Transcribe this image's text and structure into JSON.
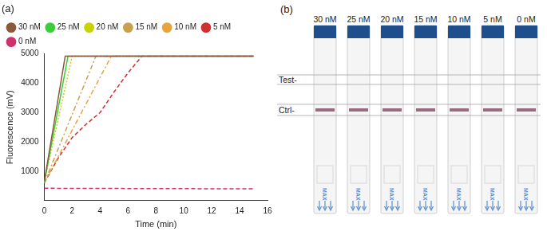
{
  "chart_data": {
    "type": "line",
    "title": "(a)",
    "x_label": "Time (min)",
    "y_label": "Fluorescence (mV)",
    "xlim": [
      0,
      16
    ],
    "xticks": [
      0,
      2,
      4,
      6,
      8,
      10,
      12,
      14,
      16
    ],
    "ylim": [
      0,
      5000
    ],
    "yticks": [
      1000,
      2000,
      3000,
      4000,
      5000
    ],
    "grid": false,
    "legend": "top left",
    "series": [
      {
        "name": "30 nM",
        "color": "#8b5a3c",
        "line_style": "solid",
        "x": [
          0,
          1.5,
          15
        ],
        "values": [
          650,
          4920,
          4920
        ]
      },
      {
        "name": "25 nM",
        "color": "#3ccd3c",
        "line_style": "solid",
        "x": [
          0,
          1.7,
          15
        ],
        "values": [
          620,
          4920,
          4920
        ]
      },
      {
        "name": "20 nM",
        "color": "#c8d400",
        "line_style": "dotted",
        "x": [
          0,
          2.0,
          15
        ],
        "values": [
          640,
          4920,
          4920
        ]
      },
      {
        "name": "15 nM",
        "color": "#c9a050",
        "line_style": "dashdot",
        "x": [
          0,
          3.7,
          15
        ],
        "values": [
          600,
          4920,
          4920
        ]
      },
      {
        "name": "10 nM",
        "color": "#e8a33c",
        "line_style": "dashdot",
        "x": [
          0,
          4.8,
          15
        ],
        "values": [
          600,
          4920,
          4920
        ]
      },
      {
        "name": "5 nM",
        "color": "#d03030",
        "line_style": "dashed",
        "x": [
          0,
          1,
          2,
          3,
          4,
          5,
          6,
          7,
          15
        ],
        "values": [
          600,
          1450,
          2150,
          2600,
          3000,
          3700,
          4350,
          4920,
          4920
        ]
      },
      {
        "name": "0 nM",
        "color": "#d0306c",
        "line_style": "dashed",
        "x": [
          0,
          7,
          15
        ],
        "values": [
          420,
          410,
          400
        ]
      }
    ]
  },
  "photo": {
    "label": "(b)",
    "line_labels": [
      "Test-",
      "Ctrl-"
    ],
    "pad_label": "MAX",
    "strips": [
      {
        "label": "30 nM",
        "test_line": false,
        "control_line": true
      },
      {
        "label": "25 nM",
        "test_line": false,
        "control_line": true
      },
      {
        "label": "20 nM",
        "test_line": false,
        "control_line": true
      },
      {
        "label": "15 nM",
        "test_line": false,
        "control_line": true
      },
      {
        "label": "10 nM",
        "test_line": false,
        "control_line": true
      },
      {
        "label": "5 nM",
        "test_line": false,
        "control_line": true
      },
      {
        "label": "0 nM",
        "test_line": false,
        "control_line": true
      }
    ]
  }
}
